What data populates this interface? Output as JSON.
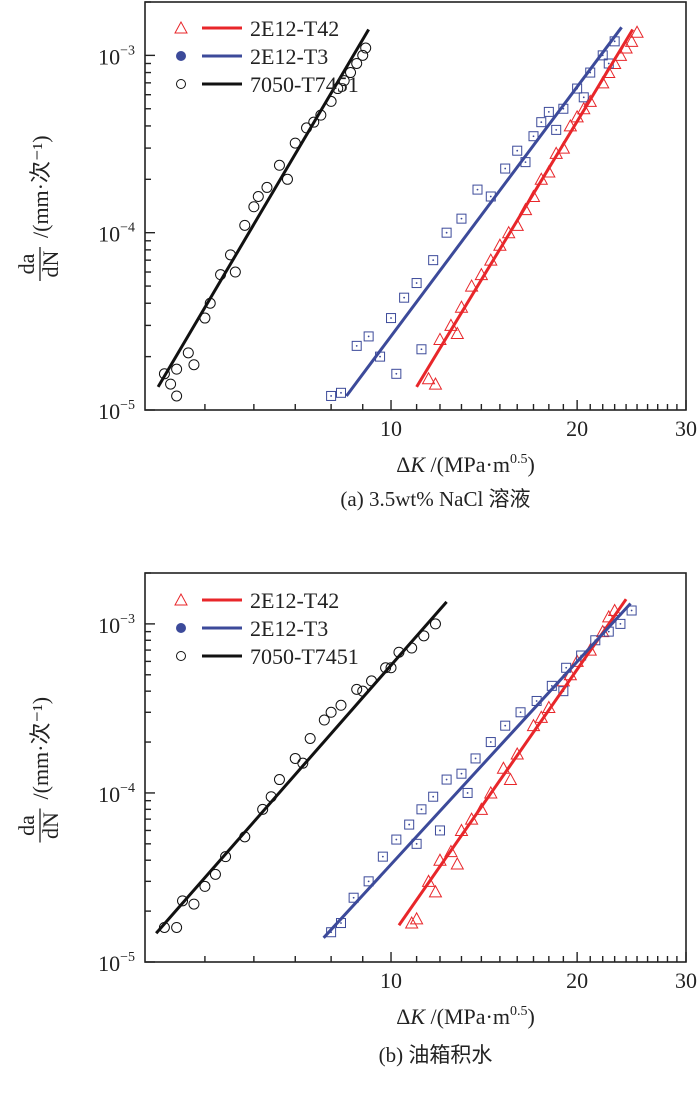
{
  "chart_data": [
    {
      "type": "scatter",
      "panel": "a",
      "caption": "(a) 3.5wt% NaCl 溶液",
      "xscale": "log",
      "yscale": "log",
      "xlim": [
        4,
        30
      ],
      "ylim": [
        1e-05,
        0.002
      ],
      "xticks": [
        10,
        20,
        30
      ],
      "xtick_labels": [
        "10",
        "20",
        "30"
      ],
      "yticks": [
        1e-05,
        0.0001,
        0.001
      ],
      "ytick_labels": [
        {
          "base": "10",
          "exp": "−5"
        },
        {
          "base": "10",
          "exp": "−4"
        },
        {
          "base": "10",
          "exp": "−3"
        }
      ],
      "xlabel": {
        "delta": "Δ",
        "var": "K",
        "unit": " /(MPa·m",
        "exp": "0.5",
        "close": ")"
      },
      "ylabel": {
        "num": "da",
        "den": "dN",
        "unit": "/(mm·次⁻¹)"
      },
      "legend_position": "top-left",
      "series": [
        {
          "name": "2E12-T42",
          "color": "#e8262a",
          "marker": "open-triangle",
          "legend_marker": "open-triangle",
          "fit": [
            [
              11.0,
              1.35e-05
            ],
            [
              24.6,
              0.0014
            ]
          ],
          "points": [
            [
              11.5,
              1.5e-05
            ],
            [
              11.8,
              1.4e-05
            ],
            [
              12.0,
              2.5e-05
            ],
            [
              12.5,
              3e-05
            ],
            [
              12.8,
              2.7e-05
            ],
            [
              13.0,
              3.8e-05
            ],
            [
              13.5,
              5e-05
            ],
            [
              14.0,
              5.8e-05
            ],
            [
              14.5,
              7e-05
            ],
            [
              15.0,
              8.5e-05
            ],
            [
              15.5,
              0.0001
            ],
            [
              16.0,
              0.00011
            ],
            [
              16.5,
              0.000135
            ],
            [
              17.0,
              0.00016
            ],
            [
              17.5,
              0.0002
            ],
            [
              18.0,
              0.00022
            ],
            [
              18.5,
              0.00028
            ],
            [
              19.0,
              0.0003
            ],
            [
              19.5,
              0.0004
            ],
            [
              20.0,
              0.00045
            ],
            [
              20.5,
              0.0005
            ],
            [
              21.0,
              0.00055
            ],
            [
              22.0,
              0.0007
            ],
            [
              22.5,
              0.0008
            ],
            [
              23.0,
              0.0009
            ],
            [
              23.5,
              0.001
            ],
            [
              24.0,
              0.0011
            ],
            [
              24.5,
              0.0012
            ],
            [
              25.0,
              0.00135
            ]
          ]
        },
        {
          "name": "2E12-T3",
          "color": "#3c4a9a",
          "marker": "open-square-dot",
          "legend_marker": "filled-circle",
          "fit": [
            [
              8.47,
              1.2e-05
            ],
            [
              23.6,
              0.00144
            ]
          ],
          "points": [
            [
              8.0,
              1.2e-05
            ],
            [
              8.3,
              1.25e-05
            ],
            [
              8.8,
              2.3e-05
            ],
            [
              9.2,
              2.6e-05
            ],
            [
              9.6,
              2e-05
            ],
            [
              10.0,
              3.3e-05
            ],
            [
              10.2,
              1.6e-05
            ],
            [
              10.5,
              4.3e-05
            ],
            [
              11.0,
              5.2e-05
            ],
            [
              11.2,
              2.2e-05
            ],
            [
              11.7,
              7e-05
            ],
            [
              12.3,
              0.0001
            ],
            [
              13.0,
              0.00012
            ],
            [
              13.8,
              0.000175
            ],
            [
              14.5,
              0.00016
            ],
            [
              15.3,
              0.00023
            ],
            [
              16.0,
              0.00029
            ],
            [
              16.5,
              0.00025
            ],
            [
              17.0,
              0.00035
            ],
            [
              17.5,
              0.00042
            ],
            [
              18.0,
              0.00048
            ],
            [
              18.5,
              0.00038
            ],
            [
              19.0,
              0.0005
            ],
            [
              20.0,
              0.00065
            ],
            [
              20.5,
              0.00058
            ],
            [
              21.0,
              0.0008
            ],
            [
              22.0,
              0.001
            ],
            [
              22.5,
              0.0009
            ],
            [
              23.0,
              0.0012
            ]
          ]
        },
        {
          "name": "7050-T7451",
          "color": "#111111",
          "marker": "open-circle",
          "legend_marker": "open-circle",
          "fit": [
            [
              4.2,
              1.35e-05
            ],
            [
              9.2,
              0.0014
            ]
          ],
          "points": [
            [
              4.3,
              1.6e-05
            ],
            [
              4.4,
              1.4e-05
            ],
            [
              4.5,
              1.2e-05
            ],
            [
              4.5,
              1.7e-05
            ],
            [
              4.7,
              2.1e-05
            ],
            [
              4.8,
              1.8e-05
            ],
            [
              5.0,
              3.3e-05
            ],
            [
              5.1,
              4e-05
            ],
            [
              5.3,
              5.8e-05
            ],
            [
              5.5,
              7.5e-05
            ],
            [
              5.6,
              6e-05
            ],
            [
              5.8,
              0.00011
            ],
            [
              6.0,
              0.00014
            ],
            [
              6.1,
              0.00016
            ],
            [
              6.3,
              0.00018
            ],
            [
              6.6,
              0.00024
            ],
            [
              6.8,
              0.0002
            ],
            [
              7.0,
              0.00032
            ],
            [
              7.3,
              0.00039
            ],
            [
              7.5,
              0.00042
            ],
            [
              7.7,
              0.00046
            ],
            [
              8.0,
              0.00055
            ],
            [
              8.2,
              0.00065
            ],
            [
              8.4,
              0.00072
            ],
            [
              8.6,
              0.0008
            ],
            [
              8.8,
              0.0009
            ],
            [
              9.0,
              0.001
            ],
            [
              9.1,
              0.0011
            ]
          ]
        }
      ]
    },
    {
      "type": "scatter",
      "panel": "b",
      "caption": "(b) 油箱积水",
      "xscale": "log",
      "yscale": "log",
      "xlim": [
        4,
        30
      ],
      "ylim": [
        1e-05,
        0.002
      ],
      "xticks": [
        10,
        20,
        30
      ],
      "xtick_labels": [
        "10",
        "20",
        "30"
      ],
      "yticks": [
        1e-05,
        0.0001,
        0.001
      ],
      "ytick_labels": [
        {
          "base": "10",
          "exp": "−5"
        },
        {
          "base": "10",
          "exp": "−4"
        },
        {
          "base": "10",
          "exp": "−3"
        }
      ],
      "xlabel": {
        "delta": "Δ",
        "var": "K",
        "unit": " /(MPa·m",
        "exp": "0.5",
        "close": ")"
      },
      "ylabel": {
        "num": "da",
        "den": "dN",
        "unit": "/(mm·次⁻¹)"
      },
      "legend_position": "top-left",
      "series": [
        {
          "name": "2E12-T42",
          "color": "#e8262a",
          "marker": "open-triangle",
          "legend_marker": "open-triangle",
          "fit": [
            [
              10.3,
              1.65e-05
            ],
            [
              24.0,
              0.0014
            ]
          ],
          "points": [
            [
              10.8,
              1.7e-05
            ],
            [
              11.0,
              1.8e-05
            ],
            [
              11.5,
              3e-05
            ],
            [
              11.8,
              2.6e-05
            ],
            [
              12.0,
              4e-05
            ],
            [
              12.5,
              4.5e-05
            ],
            [
              12.8,
              3.8e-05
            ],
            [
              13.0,
              6e-05
            ],
            [
              13.5,
              7e-05
            ],
            [
              14.0,
              8e-05
            ],
            [
              14.5,
              0.0001
            ],
            [
              15.2,
              0.00014
            ],
            [
              15.6,
              0.00012
            ],
            [
              16.0,
              0.00017
            ],
            [
              17.0,
              0.00025
            ],
            [
              17.5,
              0.00028
            ],
            [
              18.0,
              0.00032
            ],
            [
              19.0,
              0.00046
            ],
            [
              19.5,
              0.0005
            ],
            [
              20.0,
              0.0006
            ],
            [
              21.0,
              0.0007
            ],
            [
              22.0,
              0.0009
            ],
            [
              22.5,
              0.0011
            ],
            [
              23.0,
              0.0012
            ]
          ]
        },
        {
          "name": "2E12-T3",
          "color": "#3c4a9a",
          "marker": "open-square-dot",
          "legend_marker": "filled-circle",
          "fit": [
            [
              7.78,
              1.39e-05
            ],
            [
              24.4,
              0.00132
            ]
          ],
          "points": [
            [
              8.0,
              1.5e-05
            ],
            [
              8.3,
              1.7e-05
            ],
            [
              8.7,
              2.4e-05
            ],
            [
              9.2,
              3e-05
            ],
            [
              9.7,
              4.2e-05
            ],
            [
              10.2,
              5.3e-05
            ],
            [
              10.7,
              6.5e-05
            ],
            [
              11.0,
              5e-05
            ],
            [
              11.2,
              8e-05
            ],
            [
              11.7,
              9.5e-05
            ],
            [
              12.0,
              6e-05
            ],
            [
              12.3,
              0.00012
            ],
            [
              13.0,
              0.00013
            ],
            [
              13.3,
              0.0001
            ],
            [
              13.7,
              0.00016
            ],
            [
              14.5,
              0.0002
            ],
            [
              15.3,
              0.00025
            ],
            [
              16.2,
              0.0003
            ],
            [
              17.2,
              0.00035
            ],
            [
              18.2,
              0.00043
            ],
            [
              19.0,
              0.0004
            ],
            [
              19.2,
              0.00055
            ],
            [
              20.3,
              0.00065
            ],
            [
              21.4,
              0.0008
            ],
            [
              22.5,
              0.0009
            ],
            [
              23.5,
              0.001
            ],
            [
              24.5,
              0.0012
            ]
          ]
        },
        {
          "name": "7050-T7451",
          "color": "#111111",
          "marker": "open-circle",
          "legend_marker": "open-circle",
          "fit": [
            [
              4.17,
              1.48e-05
            ],
            [
              12.3,
              0.00135
            ]
          ],
          "points": [
            [
              4.3,
              1.6e-05
            ],
            [
              4.5,
              1.6e-05
            ],
            [
              4.6,
              2.3e-05
            ],
            [
              4.8,
              2.2e-05
            ],
            [
              5.0,
              2.8e-05
            ],
            [
              5.2,
              3.3e-05
            ],
            [
              5.4,
              4.2e-05
            ],
            [
              5.8,
              5.5e-05
            ],
            [
              6.2,
              8e-05
            ],
            [
              6.4,
              9.5e-05
            ],
            [
              6.6,
              0.00012
            ],
            [
              7.0,
              0.00016
            ],
            [
              7.2,
              0.00015
            ],
            [
              7.4,
              0.00021
            ],
            [
              7.8,
              0.00027
            ],
            [
              8.0,
              0.0003
            ],
            [
              8.3,
              0.00033
            ],
            [
              8.8,
              0.00041
            ],
            [
              9.0,
              0.0004
            ],
            [
              9.3,
              0.00046
            ],
            [
              9.8,
              0.00055
            ],
            [
              10.0,
              0.00055
            ],
            [
              10.3,
              0.00068
            ],
            [
              10.8,
              0.00072
            ],
            [
              11.3,
              0.00085
            ],
            [
              11.8,
              0.001
            ]
          ]
        }
      ]
    }
  ]
}
